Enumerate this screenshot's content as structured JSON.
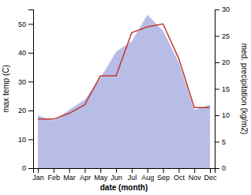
{
  "chart_data": {
    "type": "line",
    "categories": [
      "Jan",
      "Feb",
      "Mar",
      "Apr",
      "May",
      "Jun",
      "Jul",
      "Aug",
      "Sep",
      "Oct",
      "Nov",
      "Dec"
    ],
    "xlabel": "date (month)",
    "ylabel": "max temp (C)",
    "y2label": "med. precipitation (kg/m2)",
    "series": [
      {
        "type": "area",
        "axis": "y2",
        "color": "#b8bde8",
        "values": [
          10,
          9,
          11,
          13,
          17,
          22,
          24,
          29,
          26,
          20,
          11,
          12
        ]
      },
      {
        "type": "line",
        "color": "#c0392b",
        "values": [
          17,
          17,
          19,
          22,
          32,
          32,
          47,
          49,
          50,
          38,
          21,
          21
        ]
      }
    ],
    "ylim": [
      0,
      55
    ],
    "yticks": [
      0,
      10,
      20,
      30,
      40,
      50
    ],
    "y2lim": [
      0,
      30
    ],
    "y2ticks": [
      0,
      5,
      10,
      15,
      20,
      25,
      30
    ],
    "grid": false
  }
}
